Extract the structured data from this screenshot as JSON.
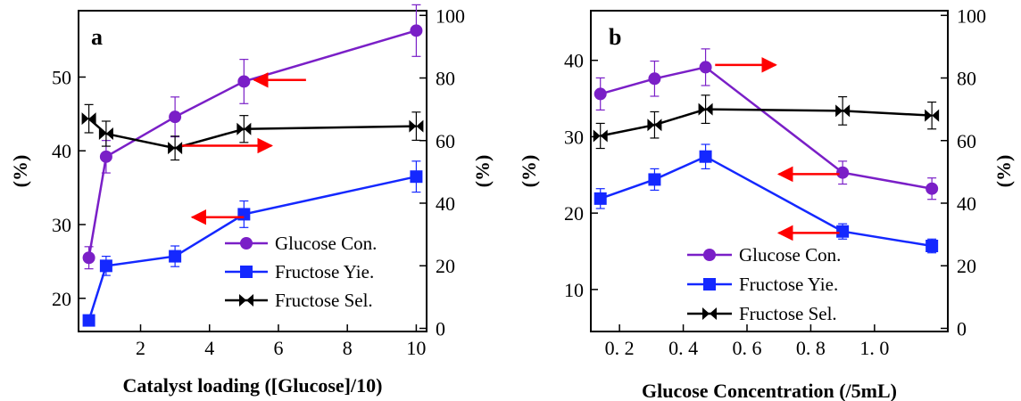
{
  "figure": {
    "colors": {
      "glucose_con": "#7a1fc7",
      "fructose_yie": "#1428ff",
      "fructose_sel": "#000000",
      "arrow": "#ff0000",
      "axes": "#000000"
    }
  },
  "chart_data": [
    {
      "type": "line",
      "panel_label": "a",
      "xlabel": "Catalyst loading ([Glucose]/10)",
      "ylabel_left": "(%)",
      "ylabel_right": "(%)",
      "xlim": [
        0.2,
        10.3
      ],
      "ylim_left": [
        15.5,
        59
      ],
      "ylim_right": [
        -1,
        101.5
      ],
      "xticks": [
        2,
        4,
        6,
        8,
        10
      ],
      "xtick_labels": [
        "2",
        "4",
        "6",
        "8",
        "10"
      ],
      "yticks_left": [
        20,
        30,
        40,
        50
      ],
      "ytick_labels_left": [
        "20",
        "30",
        "40",
        "50"
      ],
      "yticks_right": [
        0,
        20,
        40,
        60,
        80,
        100
      ],
      "ytick_labels_right": [
        "0",
        "20",
        "40",
        "60",
        "80",
        "100"
      ],
      "legend_position": "bottom-right",
      "series": [
        {
          "name": "Glucose Con.",
          "marker": "circle",
          "axis": "left",
          "color_key": "glucose_con",
          "x": [
            0.5,
            1,
            3,
            5,
            10
          ],
          "y": [
            25.5,
            39.2,
            44.6,
            49.4,
            56.3
          ],
          "err": [
            1.5,
            2.2,
            2.7,
            3.0,
            3.5
          ]
        },
        {
          "name": "Fructose Yie.",
          "marker": "square",
          "axis": "left",
          "color_key": "fructose_yie",
          "x": [
            0.5,
            1,
            3,
            5,
            10
          ],
          "y": [
            17.0,
            24.4,
            25.7,
            31.4,
            36.5
          ],
          "err": [
            0.6,
            1.3,
            1.4,
            1.8,
            2.1
          ]
        },
        {
          "name": "Fructose Sel.",
          "marker": "bowtie",
          "axis": "right",
          "color_key": "fructose_sel",
          "x": [
            0.5,
            1,
            3,
            5,
            10
          ],
          "y": [
            67,
            62.2,
            57.6,
            63.7,
            64.6
          ],
          "err": [
            4.5,
            4.0,
            3.8,
            4.3,
            4.5
          ]
        }
      ],
      "arrows": [
        {
          "direction": "left",
          "x_from": 6.8,
          "x_to": 5.3,
          "y": 49.6
        },
        {
          "direction": "right",
          "x_from": 3.2,
          "x_to": 5.8,
          "y": 40.7
        },
        {
          "direction": "left",
          "x_from": 5.0,
          "x_to": 3.5,
          "y": 31.0
        }
      ]
    },
    {
      "type": "line",
      "panel_label": "b",
      "xlabel": "Glucose Concentration (/5mL)",
      "ylabel_left": "(%)",
      "ylabel_right": "(%)",
      "xlim": [
        0.11,
        1.23
      ],
      "ylim_left": [
        4.5,
        46.5
      ],
      "ylim_right": [
        -1,
        101.5
      ],
      "xticks": [
        0.2,
        0.4,
        0.6,
        0.8,
        1.0
      ],
      "xtick_labels": [
        "0. 2",
        "0. 4",
        "0. 6",
        "0. 8",
        "1. 0"
      ],
      "yticks_left": [
        10,
        20,
        30,
        40
      ],
      "ytick_labels_left": [
        "10",
        "20",
        "30",
        "40"
      ],
      "yticks_right": [
        0,
        20,
        40,
        60,
        80,
        100
      ],
      "ytick_labels_right": [
        "0",
        "20",
        "40",
        "60",
        "80",
        "100"
      ],
      "legend_position": "bottom-left",
      "series": [
        {
          "name": "Glucose Con.",
          "marker": "circle",
          "axis": "left",
          "color_key": "glucose_con",
          "x": [
            0.14,
            0.31,
            0.47,
            0.9,
            1.18
          ],
          "y": [
            35.6,
            37.6,
            39.1,
            25.3,
            23.2
          ],
          "err": [
            2.1,
            2.3,
            2.4,
            1.5,
            1.4
          ]
        },
        {
          "name": "Fructose Yie.",
          "marker": "square",
          "axis": "left",
          "color_key": "fructose_yie",
          "x": [
            0.14,
            0.31,
            0.47,
            0.9,
            1.18
          ],
          "y": [
            21.9,
            24.4,
            27.4,
            17.6,
            15.7
          ],
          "err": [
            1.3,
            1.4,
            1.6,
            1.0,
            0.9
          ]
        },
        {
          "name": "Fructose Sel.",
          "marker": "bowtie",
          "axis": "right",
          "color_key": "fructose_sel",
          "x": [
            0.14,
            0.31,
            0.47,
            0.9,
            1.18
          ],
          "y": [
            61.5,
            65,
            70,
            69.5,
            68
          ],
          "err": [
            4.0,
            4.2,
            4.5,
            4.5,
            4.3
          ]
        }
      ],
      "arrows": [
        {
          "direction": "right",
          "x_from": 0.5,
          "x_to": 0.69,
          "y": 39.4
        },
        {
          "direction": "left",
          "x_from": 0.89,
          "x_to": 0.7,
          "y": 25.1
        },
        {
          "direction": "left",
          "x_from": 0.89,
          "x_to": 0.7,
          "y": 17.4
        }
      ]
    }
  ]
}
